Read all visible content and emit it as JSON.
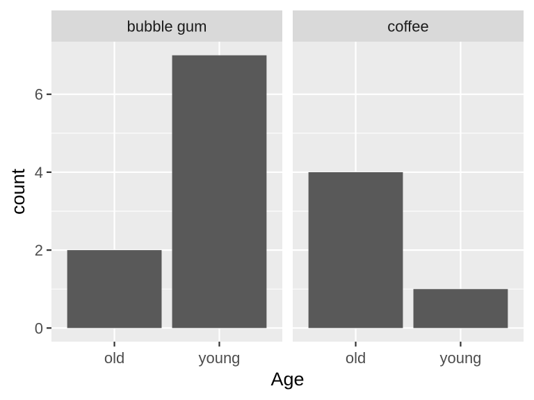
{
  "chart_data": {
    "type": "bar",
    "facets": [
      {
        "label": "bubble gum",
        "categories": [
          "old",
          "young"
        ],
        "values": [
          2,
          7
        ]
      },
      {
        "label": "coffee",
        "categories": [
          "old",
          "young"
        ],
        "values": [
          4,
          1
        ]
      }
    ],
    "xlabel": "Age",
    "ylabel": "count",
    "ylim": [
      -0.35,
      7.35
    ],
    "yticks": [
      0,
      2,
      4,
      6
    ],
    "grid": true,
    "colors": {
      "bar": "#595959",
      "panel_background": "#ebebeb",
      "strip_background": "#d9d9d9",
      "grid": "#ffffff"
    }
  }
}
